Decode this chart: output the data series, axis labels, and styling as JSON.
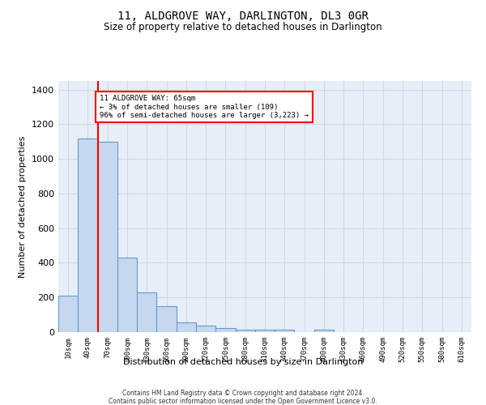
{
  "title": "11, ALDGROVE WAY, DARLINGTON, DL3 0GR",
  "subtitle": "Size of property relative to detached houses in Darlington",
  "xlabel": "Distribution of detached houses by size in Darlington",
  "ylabel": "Number of detached properties",
  "categories": [
    "10sqm",
    "40sqm",
    "70sqm",
    "100sqm",
    "130sqm",
    "160sqm",
    "190sqm",
    "220sqm",
    "250sqm",
    "280sqm",
    "310sqm",
    "340sqm",
    "370sqm",
    "400sqm",
    "430sqm",
    "460sqm",
    "490sqm",
    "520sqm",
    "550sqm",
    "580sqm",
    "610sqm"
  ],
  "values": [
    210,
    1120,
    1100,
    430,
    230,
    148,
    55,
    38,
    25,
    12,
    15,
    15,
    0,
    12,
    0,
    0,
    0,
    0,
    0,
    0,
    0
  ],
  "bar_color": "#c5d8f0",
  "bar_edge_color": "#6699cc",
  "background_color": "#e8eef8",
  "grid_color": "#d0d8e8",
  "ylim": [
    0,
    1450
  ],
  "red_line_x": 1.5,
  "annotation_text": "11 ALDGROVE WAY: 65sqm\n← 3% of detached houses are smaller (109)\n96% of semi-detached houses are larger (3,223) →",
  "footer_line1": "Contains HM Land Registry data © Crown copyright and database right 2024.",
  "footer_line2": "Contains public sector information licensed under the Open Government Licence v3.0."
}
